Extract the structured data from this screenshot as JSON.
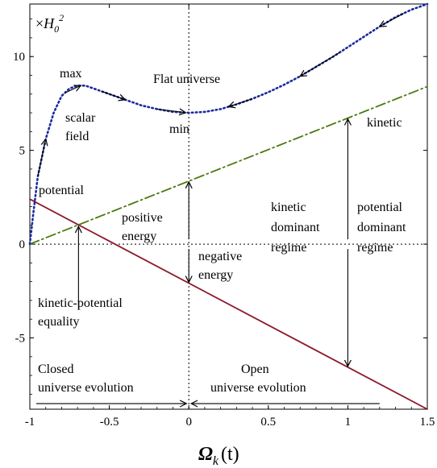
{
  "chart_data": {
    "type": "line",
    "xlabel": "Ω_k(t)",
    "ylabel": "×H₀²",
    "unit_label": {
      "prefix": "×",
      "symbol": "H",
      "sub": "0",
      "sup": "2"
    },
    "xlabel_parts": {
      "symbol": "Ω",
      "sub": "k",
      "arg": "(t)"
    },
    "xlim": [
      -1,
      1.5
    ],
    "ylim": [
      -8.8,
      12.8
    ],
    "xticks": [
      -1,
      -0.5,
      0,
      0.5,
      1,
      1.5
    ],
    "xtick_labels": [
      "-1",
      "-0.5",
      "0",
      "0.5",
      "1",
      "1.5"
    ],
    "yticks": [
      -5,
      0,
      5,
      10
    ],
    "ytick_labels": [
      "-5",
      "0",
      "5",
      "10"
    ],
    "series": [
      {
        "key": "potential",
        "style": "solid",
        "color": "#8b1a2b",
        "x": [
          -1,
          1.5
        ],
        "y": [
          2.4,
          -8.8
        ]
      },
      {
        "key": "kinetic",
        "style": "dashdot",
        "color": "#4a7a12",
        "x": [
          -1,
          1.5
        ],
        "y": [
          0,
          8.4
        ]
      },
      {
        "key": "scalar-field",
        "style": "dotted",
        "color": "#1a2a9c",
        "x": [
          -1,
          -0.98,
          -0.95,
          -0.9,
          -0.85,
          -0.8,
          -0.75,
          -0.7,
          -0.65,
          -0.6,
          -0.5,
          -0.4,
          -0.3,
          -0.2,
          -0.1,
          0,
          0.1,
          0.2,
          0.3,
          0.4,
          0.5,
          0.6,
          0.7,
          0.8,
          0.9,
          1.0,
          1.1,
          1.2,
          1.3,
          1.4,
          1.5
        ],
        "y": [
          0,
          1.5,
          3.6,
          5.6,
          7.0,
          7.9,
          8.3,
          8.45,
          8.45,
          8.3,
          8.0,
          7.7,
          7.4,
          7.2,
          7.05,
          7.0,
          7.05,
          7.2,
          7.45,
          7.75,
          8.1,
          8.5,
          8.95,
          9.45,
          9.95,
          10.5,
          11.05,
          11.6,
          12.1,
          12.5,
          12.8
        ]
      }
    ],
    "reference_lines": {
      "zero_y": 0,
      "zero_x": 0
    },
    "annotations": {
      "max": "max",
      "min": "min",
      "flat": "Flat universe",
      "scalar_1": "scalar",
      "scalar_2": "field",
      "potential": "potential",
      "kinetic": "kinetic",
      "positive_1": "positive",
      "positive_2": "energy",
      "negative_1": "negative",
      "negative_2": "energy",
      "kin_dom_1": "kinetic",
      "kin_dom_2": "dominant",
      "kin_dom_3": "regime",
      "pot_dom_1": "potential",
      "pot_dom_2": "dominant",
      "pot_dom_3": "regime",
      "equality_1": "kinetic-potential",
      "equality_2": "equality",
      "closed_1": "Closed",
      "closed_2": "universe evolution",
      "open_1": "Open",
      "open_2": "universe evolution"
    },
    "grid": false,
    "legend": "none"
  }
}
